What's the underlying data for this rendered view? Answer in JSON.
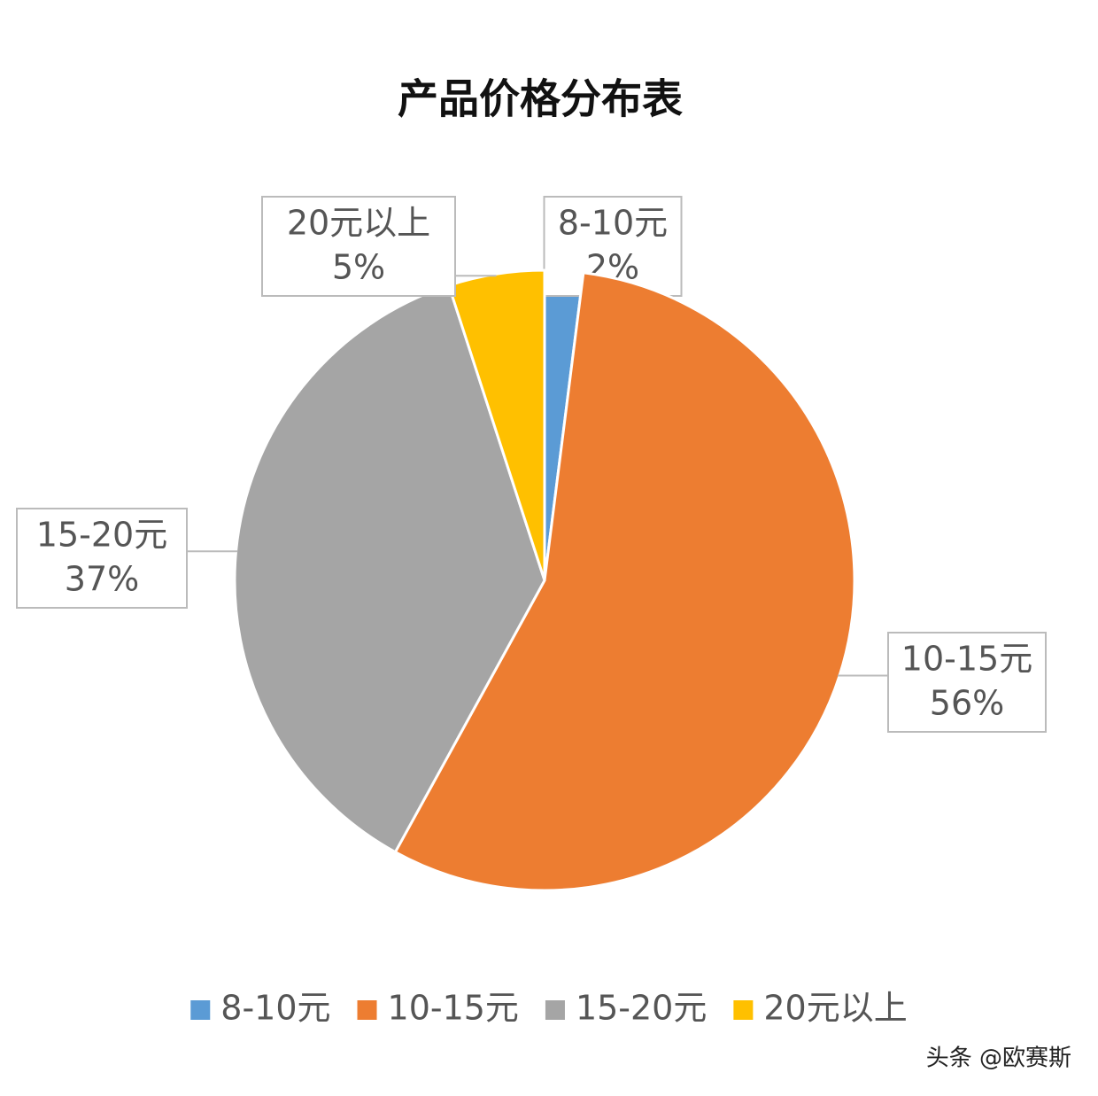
{
  "chart_data": {
    "type": "pie",
    "title": "产品价格分布表",
    "categories": [
      "8-10元",
      "10-15元",
      "15-20元",
      "20元以上"
    ],
    "values": [
      2,
      56,
      37,
      5
    ],
    "value_labels": [
      "2%",
      "56%",
      "37%",
      "5%"
    ],
    "colors": [
      "#5b9bd5",
      "#ed7d31",
      "#a5a5a5",
      "#ffc000"
    ],
    "legend": "bottom"
  },
  "watermark": "头条 @欧赛斯"
}
